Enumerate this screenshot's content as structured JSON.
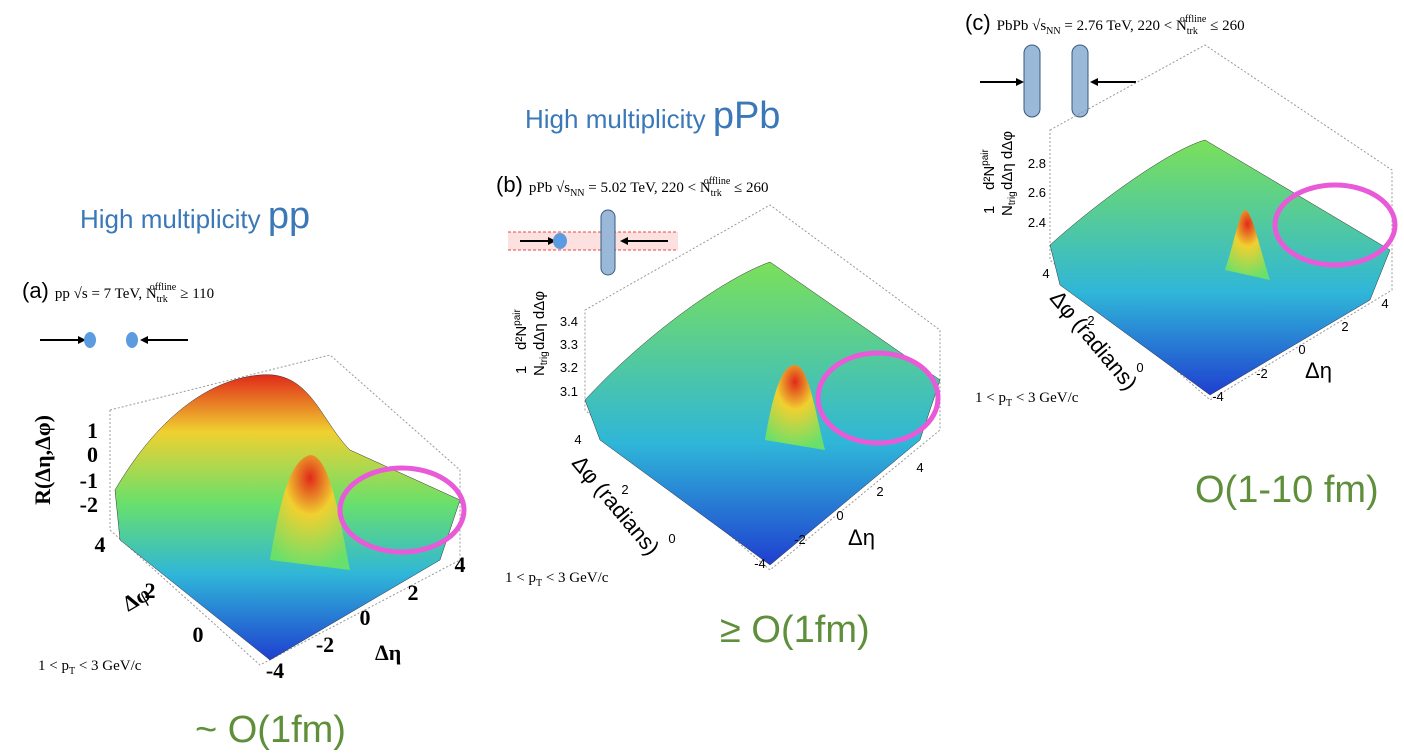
{
  "panels": [
    {
      "heading": {
        "prefix": "High multiplicity ",
        "system": "pp"
      },
      "caption": {
        "label": "(a)",
        "main": "pp √s = 7 TeV, N",
        "sub": "trk",
        "sup": "offline",
        "tail": "≥ 110"
      },
      "z_axis": {
        "label": "R(Δη,Δφ)",
        "ticks": [
          1,
          0,
          -1,
          -2
        ]
      },
      "phi_axis": {
        "label": "Δφ",
        "ticks": [
          4,
          2,
          0
        ]
      },
      "eta_axis": {
        "label": "Δη",
        "ticks": [
          4,
          2,
          0,
          -2,
          -4
        ]
      },
      "pt_cut": {
        "main": "1 < p",
        "sub": "T",
        "tail": " < 3 GeV/c"
      },
      "scale": "~ O(1fm)"
    },
    {
      "heading": {
        "prefix": "High multiplicity ",
        "system": "pPb"
      },
      "caption": {
        "label": "(b)",
        "main": "pPb √s",
        "s_sub": "NN",
        "mid": " = 5.02 TeV, 220 < N",
        "sub": "trk",
        "sup": "offline",
        "tail": " ≤ 260"
      },
      "z_axis": {
        "one": "1",
        "n": "N",
        "n_sub": "trig",
        "d2n": "d²N",
        "d2n_sup": "pair",
        "den": "dΔη dΔφ",
        "ticks": [
          3.4,
          3.3,
          3.2,
          3.1
        ]
      },
      "phi_axis": {
        "label": "Δφ (radians)",
        "ticks": [
          4,
          2,
          0
        ]
      },
      "eta_axis": {
        "label": "Δη",
        "ticks": [
          4,
          2,
          0,
          -2,
          -4
        ]
      },
      "pt_cut": {
        "main": "1 < p",
        "sub": "T",
        "tail": " < 3 GeV/c"
      },
      "scale": "≥ O(1fm)"
    },
    {
      "caption": {
        "label": "(c)",
        "main": "PbPb √s",
        "s_sub": "NN",
        "mid": " = 2.76 TeV, 220 < N",
        "sub": "trk",
        "sup": "offline",
        "tail": " ≤ 260"
      },
      "z_axis": {
        "one": "1",
        "n": "N",
        "n_sub": "trig",
        "d2n": "d²N",
        "d2n_sup": "pair",
        "den": "dΔη dΔφ",
        "ticks": [
          2.8,
          2.6,
          2.4
        ]
      },
      "phi_axis": {
        "label": "Δφ (radians)",
        "ticks": [
          4,
          2,
          0
        ]
      },
      "eta_axis": {
        "label": "Δη",
        "ticks": [
          4,
          2,
          0,
          -2,
          -4
        ]
      },
      "pt_cut": {
        "main": "1 < p",
        "sub": "T",
        "tail": " < 3 GeV/c"
      },
      "scale": "O(1-10 fm)"
    }
  ]
}
